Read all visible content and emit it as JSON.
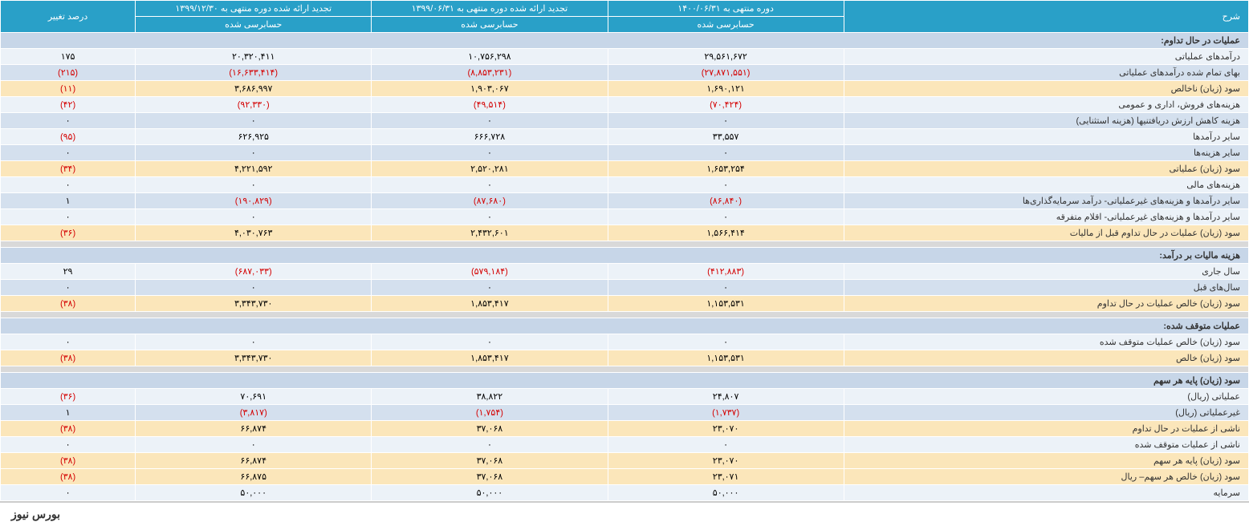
{
  "headers": {
    "desc": "شرح",
    "period1": "دوره منتهی به ۱۴۰۰/۰۶/۳۱",
    "period2": "تجدید ارائه شده دوره منتهی به ۱۳۹۹/۰۶/۳۱",
    "period3": "تجدید ارائه شده دوره منتهی به ۱۳۹۹/۱۲/۳۰",
    "pct": "درصد تغییر",
    "audited": "حسابرسی شده"
  },
  "sections": [
    {
      "title": "عملیات در حال تداوم:",
      "rows": [
        {
          "label": "درآمدهای عملیاتی",
          "v1": "۲۹,۵۶۱,۶۷۲",
          "v2": "۱۰,۷۵۶,۲۹۸",
          "v3": "۲۰,۳۲۰,۴۱۱",
          "pct": "۱۷۵",
          "cls": "row-light",
          "neg": []
        },
        {
          "label": "بهای تمام شده درآمدهای عملیاتی",
          "v1": "(۲۷,۸۷۱,۵۵۱)",
          "v2": "(۸,۸۵۳,۲۳۱)",
          "v3": "(۱۶,۶۳۳,۴۱۴)",
          "pct": "(۲۱۵)",
          "cls": "row-dark",
          "neg": [
            "v1",
            "v2",
            "v3",
            "pct"
          ]
        },
        {
          "label": "سود (زیان) ناخالص",
          "v1": "۱,۶۹۰,۱۲۱",
          "v2": "۱,۹۰۳,۰۶۷",
          "v3": "۳,۶۸۶,۹۹۷",
          "pct": "(۱۱)",
          "cls": "row-highlight",
          "neg": [
            "pct"
          ]
        },
        {
          "label": "هزینه‌های فروش، اداری و عمومی",
          "v1": "(۷۰,۴۲۴)",
          "v2": "(۴۹,۵۱۴)",
          "v3": "(۹۲,۳۳۰)",
          "pct": "(۴۲)",
          "cls": "row-light",
          "neg": [
            "v1",
            "v2",
            "v3",
            "pct"
          ]
        },
        {
          "label": "هزینه کاهش ارزش دریافتنی‎ها (هزینه استثنایی)",
          "v1": "۰",
          "v2": "۰",
          "v3": "۰",
          "pct": "۰",
          "cls": "row-dark",
          "neg": []
        },
        {
          "label": "سایر درآمدها",
          "v1": "۳۳,۵۵۷",
          "v2": "۶۶۶,۷۲۸",
          "v3": "۶۲۶,۹۲۵",
          "pct": "(۹۵)",
          "cls": "row-light",
          "neg": [
            "pct"
          ]
        },
        {
          "label": "سایر هزینه‌ها",
          "v1": "۰",
          "v2": "۰",
          "v3": "۰",
          "pct": "۰",
          "cls": "row-dark",
          "neg": []
        },
        {
          "label": "سود (زیان) عملیاتی",
          "v1": "۱,۶۵۳,۲۵۴",
          "v2": "۲,۵۲۰,۲۸۱",
          "v3": "۴,۲۲۱,۵۹۲",
          "pct": "(۳۴)",
          "cls": "row-highlight",
          "neg": [
            "pct"
          ]
        },
        {
          "label": "هزینه‌های مالی",
          "v1": "۰",
          "v2": "۰",
          "v3": "۰",
          "pct": "۰",
          "cls": "row-light",
          "neg": []
        },
        {
          "label": "سایر درآمدها و هزینه‌های غیرعملیاتی- درآمد سرمایه‌گذاری‌ها",
          "v1": "(۸۶,۸۴۰)",
          "v2": "(۸۷,۶۸۰)",
          "v3": "(۱۹۰,۸۲۹)",
          "pct": "۱",
          "cls": "row-dark",
          "neg": [
            "v1",
            "v2",
            "v3"
          ]
        },
        {
          "label": "سایر درآمدها و هزینه‌های غیرعملیاتی- اقلام متفرقه",
          "v1": "۰",
          "v2": "۰",
          "v3": "۰",
          "pct": "۰",
          "cls": "row-light",
          "neg": []
        },
        {
          "label": "سود (زیان) عملیات در حال تداوم قبل از مالیات",
          "v1": "۱,۵۶۶,۴۱۴",
          "v2": "۲,۴۳۲,۶۰۱",
          "v3": "۴,۰۳۰,۷۶۳",
          "pct": "(۳۶)",
          "cls": "row-highlight",
          "neg": [
            "pct"
          ]
        }
      ]
    },
    {
      "title": "هزینه مالیات بر درآمد:",
      "rows": [
        {
          "label": "سال جاری",
          "v1": "(۴۱۲,۸۸۳)",
          "v2": "(۵۷۹,۱۸۴)",
          "v3": "(۶۸۷,۰۳۳)",
          "pct": "۲۹",
          "cls": "row-light",
          "neg": [
            "v1",
            "v2",
            "v3"
          ]
        },
        {
          "label": "سال‌های قبل",
          "v1": "۰",
          "v2": "۰",
          "v3": "۰",
          "pct": "۰",
          "cls": "row-dark",
          "neg": []
        },
        {
          "label": "سود (زیان) خالص عملیات در حال تداوم",
          "v1": "۱,۱۵۳,۵۳۱",
          "v2": "۱,۸۵۳,۴۱۷",
          "v3": "۳,۳۴۳,۷۳۰",
          "pct": "(۳۸)",
          "cls": "row-highlight",
          "neg": [
            "pct"
          ]
        }
      ]
    },
    {
      "title": "عملیات متوقف شده:",
      "rows": [
        {
          "label": "سود (زیان) خالص عملیات متوقف شده",
          "v1": "۰",
          "v2": "۰",
          "v3": "۰",
          "pct": "۰",
          "cls": "row-light",
          "neg": []
        },
        {
          "label": "سود (زیان) خالص",
          "v1": "۱,۱۵۳,۵۳۱",
          "v2": "۱,۸۵۳,۴۱۷",
          "v3": "۳,۳۴۳,۷۳۰",
          "pct": "(۳۸)",
          "cls": "row-highlight",
          "neg": [
            "pct"
          ]
        }
      ]
    },
    {
      "title": "سود (زیان) پایه هر سهم",
      "rows": [
        {
          "label": "عملیاتی (ریال)",
          "v1": "۲۴,۸۰۷",
          "v2": "۳۸,۸۲۲",
          "v3": "۷۰,۶۹۱",
          "pct": "(۳۶)",
          "cls": "row-light",
          "neg": [
            "pct"
          ]
        },
        {
          "label": "غیرعملیاتی (ریال)",
          "v1": "(۱,۷۳۷)",
          "v2": "(۱,۷۵۴)",
          "v3": "(۳,۸۱۷)",
          "pct": "۱",
          "cls": "row-dark",
          "neg": [
            "v1",
            "v2",
            "v3"
          ]
        },
        {
          "label": "ناشی از عملیات در حال تداوم",
          "v1": "۲۳,۰۷۰",
          "v2": "۳۷,۰۶۸",
          "v3": "۶۶,۸۷۴",
          "pct": "(۳۸)",
          "cls": "row-highlight",
          "neg": [
            "pct"
          ]
        },
        {
          "label": "ناشی از عملیات متوقف شده",
          "v1": "۰",
          "v2": "۰",
          "v3": "۰",
          "pct": "۰",
          "cls": "row-light",
          "neg": []
        },
        {
          "label": "سود (زیان) پایه هر سهم",
          "v1": "۲۳,۰۷۰",
          "v2": "۳۷,۰۶۸",
          "v3": "۶۶,۸۷۴",
          "pct": "(۳۸)",
          "cls": "row-highlight",
          "neg": [
            "pct"
          ]
        },
        {
          "label": "سود (زیان) خالص هر سهم– ریال",
          "v1": "۲۳,۰۷۱",
          "v2": "۳۷,۰۶۸",
          "v3": "۶۶,۸۷۵",
          "pct": "(۳۸)",
          "cls": "row-highlight",
          "neg": [
            "pct"
          ]
        },
        {
          "label": "سرمایه",
          "v1": "۵۰,۰۰۰",
          "v2": "۵۰,۰۰۰",
          "v3": "۵۰,۰۰۰",
          "pct": "۰",
          "cls": "row-light",
          "neg": []
        }
      ]
    }
  ],
  "footer": "بورس نیوز"
}
